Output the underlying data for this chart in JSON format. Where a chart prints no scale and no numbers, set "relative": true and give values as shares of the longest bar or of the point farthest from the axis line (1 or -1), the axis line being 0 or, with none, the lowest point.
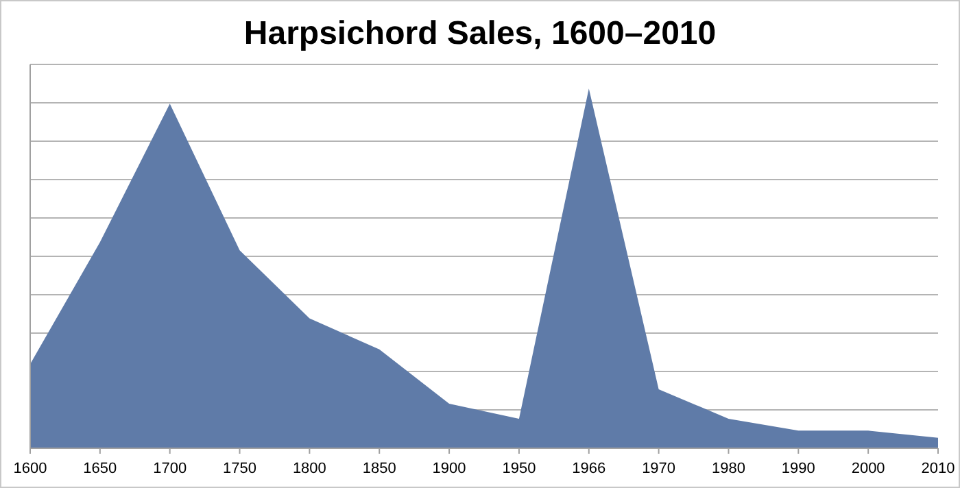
{
  "chart_data": {
    "type": "area",
    "title": "Harpsichord Sales, 1600–2010",
    "categories": [
      "1600",
      "1650",
      "1700",
      "1750",
      "1800",
      "1850",
      "1900",
      "1950",
      "1966",
      "1970",
      "1980",
      "1990",
      "2000",
      "2010"
    ],
    "values": [
      0.234,
      0.573,
      0.958,
      0.55,
      0.361,
      0.275,
      0.124,
      0.082,
      1,
      0.164,
      0.082,
      0.049,
      0.049,
      0.029
    ],
    "color": "#5f7ba8",
    "relative": true,
    "grid": "y"
  }
}
